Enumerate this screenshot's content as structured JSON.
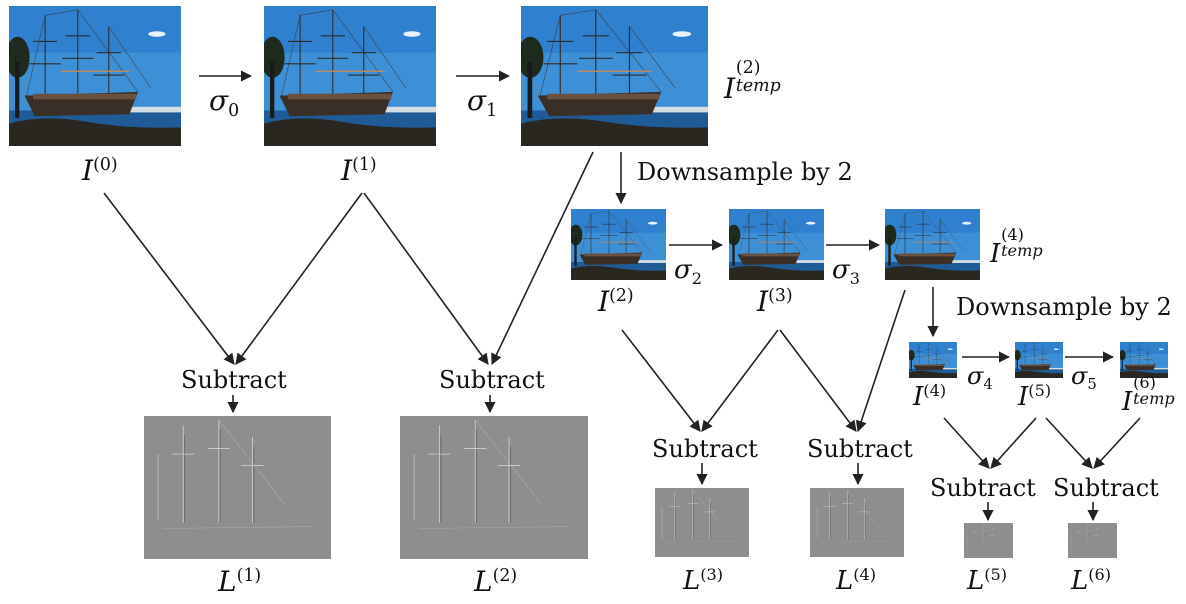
{
  "labels": {
    "i0": {
      "base": "I",
      "sup": "(0)"
    },
    "i1": {
      "base": "I",
      "sup": "(1)"
    },
    "i2temp": {
      "base": "I",
      "sup": "(2)",
      "sub": "temp"
    },
    "i2": {
      "base": "I",
      "sup": "(2)"
    },
    "i3": {
      "base": "I",
      "sup": "(3)"
    },
    "i4temp": {
      "base": "I",
      "sup": "(4)",
      "sub": "temp"
    },
    "i4": {
      "base": "I",
      "sup": "(4)"
    },
    "i5": {
      "base": "I",
      "sup": "(5)"
    },
    "i6temp": {
      "base": "I",
      "sup": "(6)",
      "sub": "temp"
    },
    "l1": {
      "base": "L",
      "sup": "(1)"
    },
    "l2": {
      "base": "L",
      "sup": "(2)"
    },
    "l3": {
      "base": "L",
      "sup": "(3)"
    },
    "l4": {
      "base": "L",
      "sup": "(4)"
    },
    "l5": {
      "base": "L",
      "sup": "(5)"
    },
    "l6": {
      "base": "L",
      "sup": "(6)"
    }
  },
  "sigmas": {
    "s0": {
      "base": "σ",
      "sub": "0"
    },
    "s1": {
      "base": "σ",
      "sub": "1"
    },
    "s2": {
      "base": "σ",
      "sub": "2"
    },
    "s3": {
      "base": "σ",
      "sub": "3"
    },
    "s4": {
      "base": "σ",
      "sub": "4"
    },
    "s5": {
      "base": "σ",
      "sub": "5"
    }
  },
  "operations": {
    "downsample": "Downsample by 2",
    "subtract": "Subtract"
  },
  "colors": {
    "sky": "#3d8fd6",
    "water": "#1f5b96",
    "diff_gray": "#8e8e8e",
    "arrow": "#222222"
  }
}
